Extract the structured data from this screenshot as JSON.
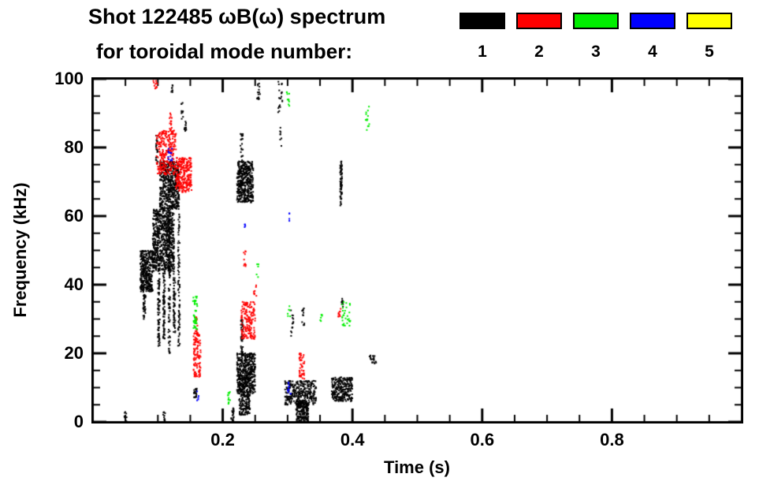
{
  "header": {
    "title_line1": "Shot 122485 ωB(ω) spectrum",
    "title_line2": "for toroidal mode number:",
    "legend": [
      {
        "label": "1",
        "color": "#000000"
      },
      {
        "label": "2",
        "color": "#ff0000"
      },
      {
        "label": "3",
        "color": "#00ee00"
      },
      {
        "label": "4",
        "color": "#0000ff"
      },
      {
        "label": "5",
        "color": "#ffff00"
      }
    ]
  },
  "chart_data": {
    "type": "scatter",
    "title": "Shot 122485 ωB(ω) spectrum for toroidal mode number: 1 2 3 4 5",
    "xlabel": "Time (s)",
    "ylabel": "Frequency (kHz)",
    "xlim": [
      0,
      1.0
    ],
    "ylim": [
      0,
      100
    ],
    "x_major_ticks": [
      0.2,
      0.4,
      0.6,
      0.8
    ],
    "x_tick_labels": [
      "0.2",
      "0.4",
      "0.6",
      "0.8"
    ],
    "x_minor_step": 0.05,
    "y_major_ticks": [
      0,
      20,
      40,
      60,
      80,
      100
    ],
    "y_tick_labels": [
      "0",
      "20",
      "40",
      "60",
      "80",
      "100"
    ],
    "y_minor_step": 5,
    "cluster_format": "[t_start_s, t_end_s, freq_low_kHz, freq_high_kHz, point_count]",
    "series": [
      {
        "name": "n=1",
        "color": "#000000",
        "clusters": [
          [
            0.073,
            0.092,
            38,
            50,
            350
          ],
          [
            0.077,
            0.081,
            30,
            38,
            40
          ],
          [
            0.092,
            0.125,
            44,
            62,
            700
          ],
          [
            0.103,
            0.133,
            62,
            76,
            500
          ],
          [
            0.1,
            0.103,
            22,
            45,
            90
          ],
          [
            0.108,
            0.111,
            24,
            44,
            80
          ],
          [
            0.116,
            0.119,
            20,
            60,
            90
          ],
          [
            0.124,
            0.127,
            26,
            46,
            70
          ],
          [
            0.131,
            0.134,
            22,
            62,
            80
          ],
          [
            0.097,
            0.1,
            75,
            84,
            25
          ],
          [
            0.141,
            0.144,
            84,
            88,
            12
          ],
          [
            0.136,
            0.139,
            88,
            93,
            10
          ],
          [
            0.12,
            0.124,
            96,
            100,
            8
          ],
          [
            0.222,
            0.247,
            64,
            76,
            450
          ],
          [
            0.227,
            0.231,
            76,
            84,
            20
          ],
          [
            0.222,
            0.25,
            8,
            20,
            500
          ],
          [
            0.225,
            0.242,
            2,
            8,
            120
          ],
          [
            0.228,
            0.231,
            20,
            30,
            40
          ],
          [
            0.213,
            0.217,
            0,
            4,
            20
          ],
          [
            0.253,
            0.258,
            94,
            100,
            18
          ],
          [
            0.285,
            0.292,
            90,
            100,
            20
          ],
          [
            0.288,
            0.291,
            80,
            86,
            8
          ],
          [
            0.296,
            0.344,
            5,
            12,
            320
          ],
          [
            0.313,
            0.332,
            0,
            6,
            200
          ],
          [
            0.305,
            0.309,
            25,
            33,
            15
          ],
          [
            0.322,
            0.326,
            28,
            34,
            12
          ],
          [
            0.368,
            0.4,
            6,
            13,
            260
          ],
          [
            0.381,
            0.384,
            63,
            76,
            70
          ],
          [
            0.383,
            0.386,
            33,
            36,
            10
          ],
          [
            0.425,
            0.438,
            17,
            20,
            20
          ],
          [
            0.048,
            0.052,
            0,
            3,
            10
          ],
          [
            0.155,
            0.16,
            7,
            10,
            25
          ],
          [
            0.108,
            0.112,
            0,
            3,
            10
          ]
        ]
      },
      {
        "name": "n=2",
        "color": "#ff0000",
        "clusters": [
          [
            0.098,
            0.128,
            72,
            85,
            260
          ],
          [
            0.128,
            0.152,
            67,
            77,
            260
          ],
          [
            0.118,
            0.122,
            85,
            90,
            15
          ],
          [
            0.093,
            0.1,
            97,
            100,
            12
          ],
          [
            0.155,
            0.166,
            13,
            26,
            110
          ],
          [
            0.158,
            0.161,
            26,
            31,
            15
          ],
          [
            0.228,
            0.25,
            24,
            35,
            160
          ],
          [
            0.232,
            0.236,
            45,
            50,
            10
          ],
          [
            0.318,
            0.326,
            12,
            20,
            45
          ],
          [
            0.378,
            0.382,
            29,
            33,
            10
          ],
          [
            0.248,
            0.252,
            35,
            40,
            8
          ]
        ]
      },
      {
        "name": "n=3",
        "color": "#00ee00",
        "clusters": [
          [
            0.154,
            0.161,
            27,
            37,
            45
          ],
          [
            0.208,
            0.212,
            5,
            9,
            12
          ],
          [
            0.298,
            0.303,
            92,
            97,
            10
          ],
          [
            0.384,
            0.397,
            28,
            35,
            30
          ],
          [
            0.42,
            0.426,
            85,
            92,
            14
          ],
          [
            0.3,
            0.304,
            30,
            34,
            6
          ],
          [
            0.35,
            0.354,
            29,
            32,
            6
          ],
          [
            0.252,
            0.256,
            42,
            46,
            5
          ]
        ]
      },
      {
        "name": "n=4",
        "color": "#0000ff",
        "clusters": [
          [
            0.116,
            0.122,
            76,
            80,
            14
          ],
          [
            0.299,
            0.305,
            8,
            12,
            10
          ],
          [
            0.16,
            0.163,
            6,
            9,
            5
          ],
          [
            0.232,
            0.235,
            56,
            59,
            4
          ],
          [
            0.3,
            0.303,
            58,
            61,
            4
          ]
        ]
      },
      {
        "name": "n=5",
        "color": "#ffff00",
        "clusters": []
      }
    ]
  }
}
